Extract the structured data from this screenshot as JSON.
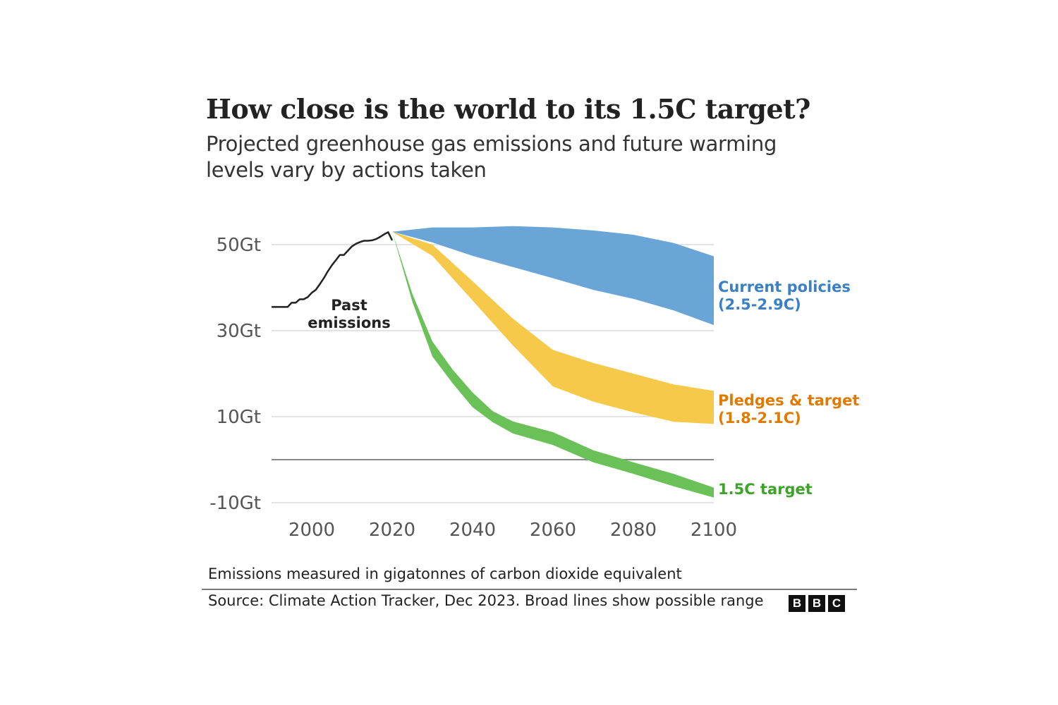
{
  "header": {
    "title": "How close is the world to its 1.5C target?",
    "subtitle": "Projected greenhouse gas emissions and future warming levels vary by actions taken"
  },
  "footer": {
    "note": "Emissions measured in gigatonnes of carbon dioxide equivalent",
    "source": "Source: Climate Action Tracker, Dec 2023. Broad lines show possible range",
    "logo_letters": [
      "B",
      "B",
      "C"
    ]
  },
  "chart_data": {
    "type": "area",
    "title": "How close is the world to its 1.5C target?",
    "subtitle": "Projected greenhouse gas emissions and future warming levels vary by actions taken",
    "xlabel": "",
    "ylabel": "",
    "xlim": [
      1990,
      2100
    ],
    "ylim": [
      -10,
      55
    ],
    "x_ticks": [
      2000,
      2020,
      2040,
      2060,
      2080,
      2100
    ],
    "y_ticks": [
      -10,
      10,
      30,
      50
    ],
    "y_tick_labels": [
      "-10Gt",
      "10Gt",
      "30Gt",
      "50Gt"
    ],
    "zero_line": true,
    "grid": "horizontal",
    "legend": "inline-right",
    "series": [
      {
        "name": "Past emissions",
        "label_lines": [
          "Past",
          "emissions"
        ],
        "kind": "line",
        "color": "#222222",
        "x": [
          1990,
          1992,
          1994,
          1995,
          1996,
          1997,
          1998,
          1999,
          2000,
          2001,
          2002,
          2003,
          2004,
          2005,
          2006,
          2007,
          2008,
          2009,
          2010,
          2011,
          2012,
          2013,
          2014,
          2015,
          2016,
          2017,
          2018,
          2019,
          2020
        ],
        "y": [
          35.5,
          35.5,
          35.5,
          36.5,
          36.5,
          37.3,
          37.3,
          37.8,
          38.8,
          39.5,
          40.8,
          42.2,
          43.8,
          45.2,
          46.4,
          47.6,
          47.6,
          48.6,
          49.6,
          50.2,
          50.6,
          50.9,
          50.9,
          51.0,
          51.3,
          51.8,
          52.4,
          52.9,
          51.0
        ]
      },
      {
        "name": "Current policies (2.5-2.9C)",
        "label_lines": [
          "Current policies",
          "(2.5-2.9C)"
        ],
        "kind": "band",
        "color": "#6aa5d8",
        "label_color": "#3b7fc4",
        "x": [
          2020,
          2030,
          2040,
          2050,
          2060,
          2070,
          2080,
          2090,
          2100
        ],
        "upper": [
          53,
          54,
          54,
          54.3,
          54,
          53.3,
          52.3,
          50.4,
          47.3
        ],
        "lower": [
          53,
          50.5,
          47.4,
          44.8,
          42.2,
          39.5,
          37.4,
          34.7,
          31.3
        ]
      },
      {
        "name": "Pledges & targets (1.8-2.1C)",
        "label_lines": [
          "Pledges & targets",
          "(1.8-2.1C)"
        ],
        "kind": "band",
        "color": "#f6c94a",
        "label_color": "#e07b00",
        "x": [
          2020,
          2030,
          2040,
          2050,
          2060,
          2070,
          2080,
          2090,
          2100
        ],
        "upper": [
          53,
          50,
          41.5,
          32.8,
          25.5,
          22.5,
          20,
          17.5,
          16
        ],
        "lower": [
          53,
          47.4,
          37,
          26.6,
          17,
          13.5,
          11,
          8.8,
          8.3
        ]
      },
      {
        "name": "1.5C target",
        "label_lines": [
          "1.5C target"
        ],
        "kind": "band",
        "color": "#69c158",
        "label_color": "#3ea32a",
        "x": [
          2020,
          2025,
          2030,
          2035,
          2040,
          2045,
          2050,
          2060,
          2070,
          2080,
          2090,
          2100
        ],
        "upper": [
          53,
          38.6,
          27.5,
          21,
          15.6,
          11.3,
          8.9,
          6.4,
          2.2,
          -0.6,
          -3.3,
          -6.5
        ],
        "lower": [
          53,
          36.8,
          24,
          17.8,
          12.2,
          8.7,
          6.1,
          3.4,
          -0.6,
          -3.3,
          -6.2,
          -8.8
        ]
      }
    ]
  }
}
